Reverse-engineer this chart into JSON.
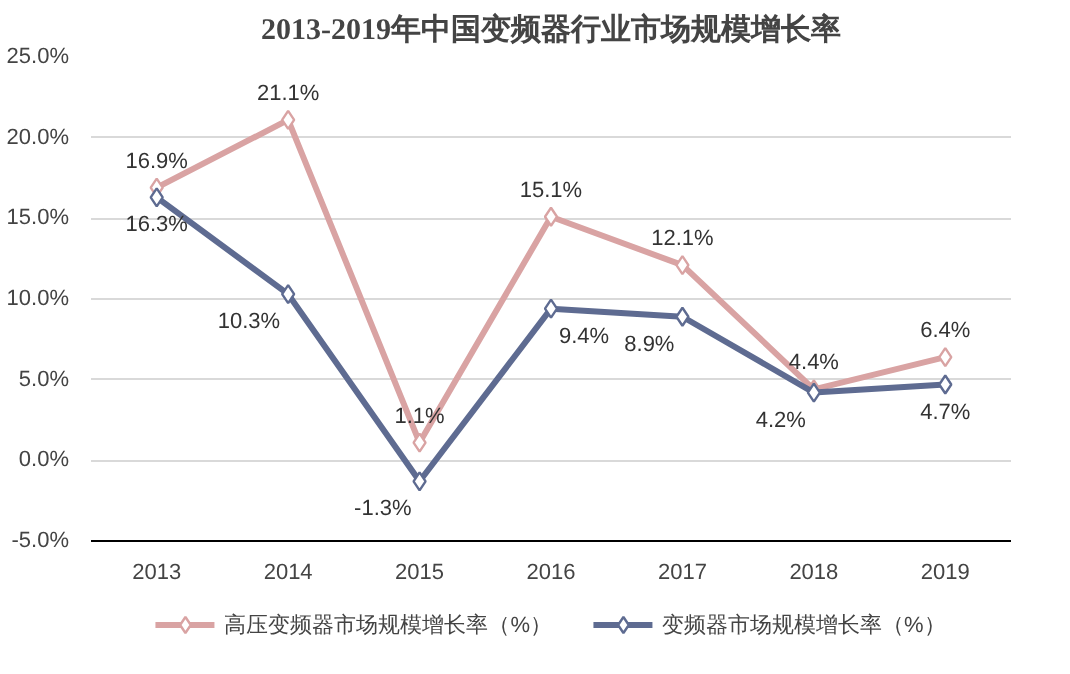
{
  "chart_data": {
    "type": "line",
    "title": "2013-2019年中国变频器行业市场规模增长率",
    "categories": [
      "2013",
      "2014",
      "2015",
      "2016",
      "2017",
      "2018",
      "2019"
    ],
    "series": [
      {
        "name": "高压变频器市场规模增长率（%）",
        "color": "#d9a3a3",
        "values": [
          16.9,
          21.1,
          1.1,
          15.1,
          12.1,
          4.4,
          6.4
        ],
        "value_labels": [
          "16.9%",
          "21.1%",
          "1.1%",
          "15.1%",
          "12.1%",
          "4.4%",
          "6.4%"
        ]
      },
      {
        "name": "变频器市场规模增长率（%）",
        "color": "#5e6b91",
        "values": [
          16.3,
          10.3,
          -1.3,
          9.4,
          8.9,
          4.2,
          4.7
        ],
        "value_labels": [
          "16.3%",
          "10.3%",
          "-1.3%",
          "9.4%",
          "8.9%",
          "4.2%",
          "4.7%"
        ]
      }
    ],
    "ylim": [
      -5,
      25
    ],
    "yticks": [
      {
        "value": -5,
        "label": "-5.0%"
      },
      {
        "value": 0,
        "label": "0.0%"
      },
      {
        "value": 5,
        "label": "5.0%"
      },
      {
        "value": 10,
        "label": "10.0%"
      },
      {
        "value": 15,
        "label": "15.0%"
      },
      {
        "value": 20,
        "label": "20.0%"
      },
      {
        "value": 25,
        "label": "25.0%"
      }
    ],
    "grid": "y",
    "legend": "bottom",
    "marker": "diamond",
    "line_style": "solid"
  }
}
